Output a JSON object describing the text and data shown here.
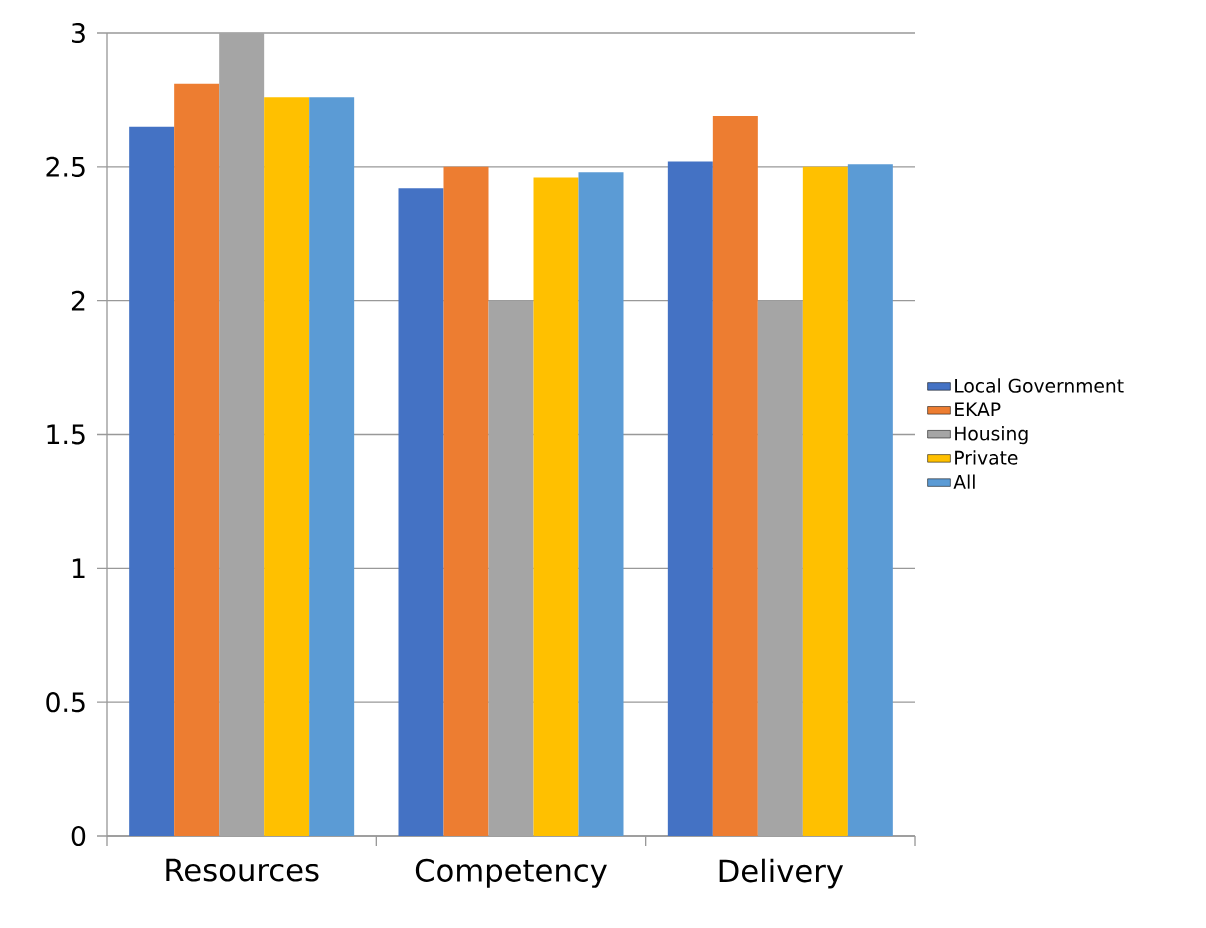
{
  "chart_data": {
    "type": "bar",
    "categories": [
      "Resources",
      "Competency",
      "Delivery"
    ],
    "series": [
      {
        "name": "Local Government",
        "color": "#4472c4",
        "values": [
          2.65,
          2.42,
          2.52
        ]
      },
      {
        "name": "EKAP",
        "color": "#ed7d31",
        "values": [
          2.81,
          2.5,
          2.69
        ]
      },
      {
        "name": "Housing",
        "color": "#a5a5a5",
        "values": [
          3.0,
          2.0,
          2.0
        ]
      },
      {
        "name": "Private",
        "color": "#ffc000",
        "values": [
          2.76,
          2.46,
          2.5
        ]
      },
      {
        "name": "All",
        "color": "#5b9bd5",
        "values": [
          2.76,
          2.48,
          2.51
        ]
      }
    ],
    "ylim": [
      0,
      3
    ],
    "yticks": [
      0,
      0.5,
      1,
      1.5,
      2,
      2.5,
      3
    ],
    "grid": "y",
    "legend": "right"
  }
}
